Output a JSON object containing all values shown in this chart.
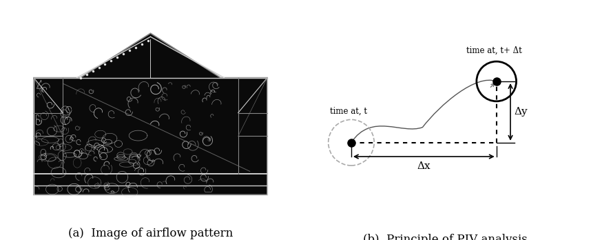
{
  "fig_width": 8.74,
  "fig_height": 3.48,
  "dpi": 100,
  "bg_color": "#ffffff",
  "caption_a": "(a)  Image of airflow pattern",
  "caption_b": "(b)  Principle of PIV analysis",
  "caption_fontsize": 12,
  "piv_label_t": "time at, t",
  "piv_label_t2": "time at, t+ Δt",
  "piv_label_dx": "Δx",
  "piv_label_dy": "Δy",
  "p1x": 0.13,
  "p1y": 0.36,
  "p2x": 0.7,
  "p2y": 0.66,
  "dashed_circle_color": "#aaaaaa",
  "solid_circle_color": "#000000",
  "curve_color": "#555555"
}
